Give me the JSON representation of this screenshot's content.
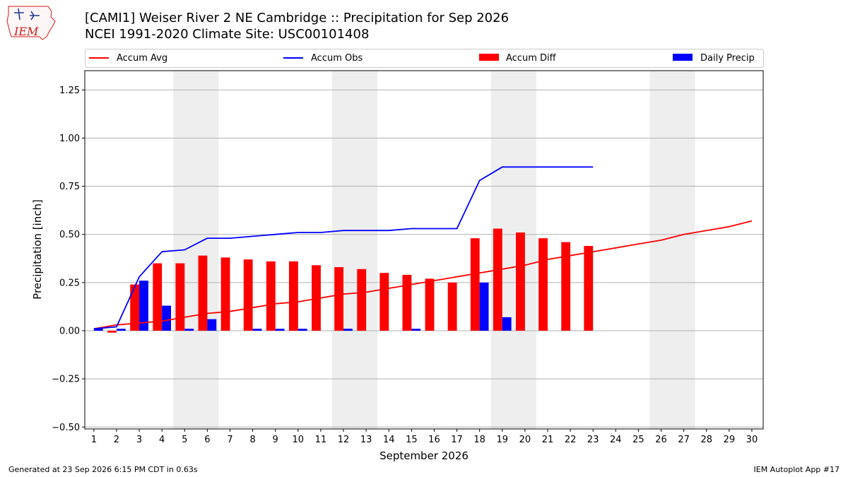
{
  "logo": {
    "text": "IEM",
    "icon": "iowa-state-map-logo-icon"
  },
  "header": {
    "title_line1": "[CAMI1] Weiser River 2 NE Cambridge :: Precipitation for Sep 2026",
    "title_line2": "NCEI 1991-2020 Climate Site: USC00101408"
  },
  "legend": {
    "placement": "top",
    "items": [
      {
        "label": "Accum Avg",
        "kind": "line",
        "color": "#ff0000"
      },
      {
        "label": "Accum Obs",
        "kind": "line",
        "color": "#0000ff"
      },
      {
        "label": "Accum Diff",
        "kind": "bar",
        "color": "#ff0000"
      },
      {
        "label": "Daily Precip",
        "kind": "bar",
        "color": "#0000ff"
      }
    ]
  },
  "footer": {
    "left": "Generated at 23 Sep 2026 6:15 PM CDT in 0.63s",
    "right": "IEM Autoplot App #17"
  },
  "chart_data": {
    "type": "bar",
    "title": "[CAMI1] Weiser River 2 NE Cambridge :: Precipitation for Sep 2026",
    "subtitle": "NCEI 1991-2020 Climate Site: USC00101408",
    "xlabel": "September 2026",
    "ylabel": "Precipitation [inch]",
    "ylim": [
      -0.51,
      1.35
    ],
    "xlim": [
      0.6,
      30.5
    ],
    "grid": "horizontal",
    "x": [
      1,
      2,
      3,
      4,
      5,
      6,
      7,
      8,
      9,
      10,
      11,
      12,
      13,
      14,
      15,
      16,
      17,
      18,
      19,
      20,
      21,
      22,
      23,
      24,
      25,
      26,
      27,
      28,
      29,
      30
    ],
    "x_tick_labels": [
      "1",
      "2",
      "3",
      "4",
      "5",
      "6",
      "7",
      "8",
      "9",
      "10",
      "11",
      "12",
      "13",
      "14",
      "15",
      "16",
      "17",
      "18",
      "19",
      "20",
      "21",
      "22",
      "23",
      "24",
      "25",
      "26",
      "27",
      "28",
      "29",
      "30"
    ],
    "y_ticks": [
      -0.5,
      -0.25,
      0.0,
      0.25,
      0.5,
      0.75,
      1.0,
      1.25
    ],
    "y_tick_labels": [
      "−0.50",
      "−0.25",
      "0.00",
      "0.25",
      "0.50",
      "0.75",
      "1.00",
      "1.25"
    ],
    "weekend_shading": [
      [
        5,
        6
      ],
      [
        12,
        13
      ],
      [
        19,
        20
      ],
      [
        26,
        27
      ]
    ],
    "series": [
      {
        "name": "Accum Avg",
        "type": "line",
        "color": "#ff0000",
        "x": [
          1,
          2,
          3,
          4,
          5,
          6,
          7,
          8,
          9,
          10,
          11,
          12,
          13,
          14,
          15,
          16,
          17,
          18,
          19,
          20,
          21,
          22,
          23,
          24,
          25,
          26,
          27,
          28,
          29,
          30
        ],
        "values": [
          0.01,
          0.03,
          0.04,
          0.05,
          0.07,
          0.09,
          0.1,
          0.12,
          0.14,
          0.15,
          0.17,
          0.19,
          0.2,
          0.22,
          0.24,
          0.26,
          0.28,
          0.3,
          0.32,
          0.34,
          0.37,
          0.39,
          0.41,
          0.43,
          0.45,
          0.47,
          0.5,
          0.52,
          0.54,
          0.57
        ]
      },
      {
        "name": "Accum Obs",
        "type": "line",
        "color": "#0000ff",
        "x": [
          1,
          2,
          3,
          4,
          5,
          6,
          7,
          8,
          9,
          10,
          11,
          12,
          13,
          14,
          15,
          16,
          17,
          18,
          19,
          20,
          21,
          22,
          23
        ],
        "values": [
          0.01,
          0.02,
          0.28,
          0.41,
          0.42,
          0.48,
          0.48,
          0.49,
          0.5,
          0.51,
          0.51,
          0.52,
          0.52,
          0.52,
          0.53,
          0.53,
          0.53,
          0.78,
          0.85,
          0.85,
          0.85,
          0.85,
          0.85
        ]
      },
      {
        "name": "Accum Diff",
        "type": "bar",
        "color": "#ff0000",
        "x": [
          1,
          2,
          3,
          4,
          5,
          6,
          7,
          8,
          9,
          10,
          11,
          12,
          13,
          14,
          15,
          16,
          17,
          18,
          19,
          20,
          21,
          22,
          23
        ],
        "values": [
          0.0,
          -0.01,
          0.24,
          0.35,
          0.35,
          0.39,
          0.38,
          0.37,
          0.36,
          0.36,
          0.34,
          0.33,
          0.32,
          0.3,
          0.29,
          0.27,
          0.25,
          0.48,
          0.53,
          0.51,
          0.48,
          0.46,
          0.44
        ]
      },
      {
        "name": "Daily Precip",
        "type": "bar",
        "color": "#0000ff",
        "x": [
          1,
          2,
          3,
          4,
          5,
          6,
          7,
          8,
          9,
          10,
          11,
          12,
          13,
          14,
          15,
          16,
          17,
          18,
          19,
          20,
          21,
          22,
          23
        ],
        "values": [
          0.01,
          0.01,
          0.26,
          0.13,
          0.01,
          0.06,
          0.0,
          0.01,
          0.01,
          0.01,
          0.0,
          0.01,
          0.0,
          0.0,
          0.01,
          0.0,
          0.0,
          0.25,
          0.07,
          0.0,
          0.0,
          0.0,
          0.0
        ]
      }
    ]
  }
}
